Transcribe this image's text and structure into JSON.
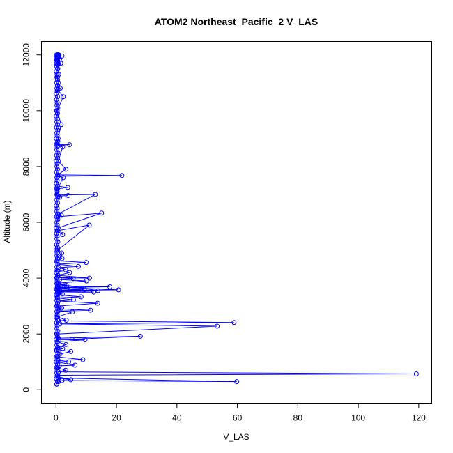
{
  "chart_data": {
    "type": "scatter",
    "title": "ATOM2 Northeast_Pacific_2 V_LAS",
    "xlabel": "V_LAS",
    "ylabel": "Altitude (m)",
    "xlim": [
      -4.8,
      124.3
    ],
    "ylim": [
      -480,
      12480
    ],
    "xticks": [
      0,
      20,
      40,
      60,
      80,
      100,
      120
    ],
    "yticks": [
      0,
      2000,
      4000,
      6000,
      8000,
      10000,
      12000
    ],
    "grid": false,
    "legend": "none",
    "mode": "lines+markers",
    "color": "#0000ff",
    "series": [
      {
        "x": [
          0.3,
          0.8,
          2.0,
          59.8,
          0.6,
          4.9,
          1.0,
          0.4,
          119.2,
          0.8,
          3.2,
          0.5,
          1.1,
          6.3,
          0.6,
          4.2,
          0.7,
          8.9,
          0.5,
          1.3,
          4.9,
          0.3,
          2.2,
          0.6,
          3.3,
          0.4,
          9.6,
          1.0,
          5.3,
          27.9,
          0.7,
          0.4,
          53.3,
          1.3,
          58.9,
          0.8,
          3.4,
          0.5,
          5.4,
          0.7,
          11.4,
          0.6,
          1.9,
          0.4,
          13.8,
          0.8,
          5.8,
          0.5,
          8.3,
          0.6,
          2.1,
          0.4,
          12.5,
          0.6,
          1.3,
          0.5,
          9.4,
          0.7,
          4.7,
          0.4,
          17.8,
          0.5,
          2.8,
          0.8,
          13.9,
          1.0,
          20.7,
          0.5,
          3.4,
          0.6,
          10.1,
          1.2,
          5.7,
          0.4,
          11.1,
          0.7,
          4.5,
          0.5,
          3.2,
          0.9,
          7.4,
          0.6,
          10.0,
          0.4,
          2.0,
          1.2,
          1.9,
          0.5,
          11.0,
          0.4,
          2.2,
          0.7,
          15.1,
          0.6,
          1.8,
          0.8,
          13.0,
          0.5,
          4.0,
          0.7,
          1.2,
          0.4,
          3.9,
          0.5,
          2.4,
          0.6,
          21.8,
          0.5,
          3.3,
          0.8,
          2.2,
          0.6,
          4.5,
          0.5,
          1.0,
          0.7,
          1.7,
          0.4,
          2.4,
          0.6,
          1.4,
          0.5,
          0.8,
          0.5,
          0.9,
          0.6,
          1.6,
          0.5,
          1.2,
          0.6,
          0.8,
          0.5,
          0.7,
          0.6,
          2.0,
          0.5,
          0.8,
          0.6,
          0.7,
          0.5,
          0.9,
          0.6,
          0.7,
          0.5,
          0.8,
          0.5,
          0.7
        ],
        "y": [
          200,
          290,
          330,
          290,
          420,
          360,
          460,
          520,
          570,
          640,
          700,
          790,
          860,
          880,
          990,
          1000,
          1060,
          1080,
          1180,
          1280,
          1370,
          1440,
          1470,
          1520,
          1620,
          1720,
          1790,
          1800,
          1810,
          1920,
          1850,
          2000,
          2280,
          2360,
          2410,
          2470,
          2490,
          2610,
          2790,
          2820,
          2850,
          2900,
          2930,
          3000,
          3100,
          3180,
          3220,
          3290,
          3330,
          3400,
          3430,
          3470,
          3500,
          3520,
          3550,
          3570,
          3600,
          3630,
          3650,
          3670,
          3690,
          3720,
          3730,
          3800,
          3550,
          3560,
          3580,
          3680,
          3740,
          3820,
          3900,
          3950,
          3980,
          4020,
          4000,
          4100,
          4200,
          4240,
          4300,
          4380,
          4420,
          4500,
          4560,
          4620,
          4700,
          4800,
          4900,
          5000,
          5900,
          5700,
          5560,
          5800,
          6330,
          6200,
          6250,
          6300,
          7000,
          6980,
          6960,
          6940,
          6900,
          7300,
          7250,
          7200,
          7600,
          7650,
          7680,
          7700,
          7900,
          8200,
          8700,
          8750,
          8780,
          8800,
          8850,
          9000,
          9500,
          10000,
          10500,
          10750,
          10800,
          10900,
          11000,
          11200,
          11300,
          11500,
          11700,
          11800,
          11850,
          11880,
          11900,
          11920,
          11940,
          11950,
          11960,
          11970,
          11980,
          11990,
          12000,
          12000,
          12000,
          12000,
          12000,
          12000,
          12000,
          12000,
          12000
        ]
      },
      {
        "x": [
          0.2,
          0.5,
          0.1,
          0.6,
          0.3,
          0.4,
          0.2,
          0.5,
          0.1,
          0.4,
          0.3,
          0.6,
          0.2,
          0.5,
          0.3,
          0.4,
          0.1,
          0.5,
          0.2,
          0.6,
          0.3,
          0.4,
          0.2,
          0.5,
          0.1,
          0.4,
          0.3,
          0.6,
          0.2,
          0.5,
          0.3,
          0.4,
          0.1,
          0.5,
          0.2,
          0.6,
          0.3,
          0.4,
          0.2,
          0.5,
          0.1,
          0.4,
          0.3,
          0.6,
          0.2,
          0.5,
          0.3,
          0.4,
          0.1,
          0.5,
          0.2,
          0.6,
          0.3,
          0.4,
          0.2,
          0.5,
          0.1,
          0.4,
          0.3,
          0.6,
          0.2,
          0.5,
          0.3,
          0.4,
          0.1,
          0.5,
          0.2,
          0.6,
          0.3,
          0.4,
          0.2,
          0.5,
          0.1,
          0.4,
          0.3,
          0.6,
          0.2,
          0.5,
          0.3,
          0.4,
          0.1,
          0.5,
          0.2,
          0.6,
          0.3,
          0.4,
          0.2,
          0.5,
          0.1,
          0.4,
          0.3,
          0.6,
          0.2,
          0.5,
          0.3,
          0.4,
          0.1,
          0.5,
          0.2,
          0.6,
          0.3,
          0.4,
          0.2,
          0.5,
          0.1,
          0.4,
          0.3,
          0.6,
          0.2,
          0.5,
          0.3,
          0.4,
          0.1,
          0.5,
          0.2,
          0.6,
          0.3,
          0.4,
          0.2,
          0.5,
          0.1,
          0.4,
          0.3,
          0.6,
          0.2,
          0.5
        ],
        "y": [
          200,
          300,
          400,
          500,
          600,
          700,
          800,
          900,
          1000,
          1100,
          1200,
          1300,
          1400,
          1500,
          1600,
          1700,
          1800,
          1900,
          2000,
          2100,
          2200,
          2300,
          2400,
          2500,
          2600,
          2700,
          2800,
          2900,
          3000,
          3100,
          3200,
          3300,
          3400,
          3500,
          3600,
          3700,
          3800,
          3900,
          4000,
          4100,
          4200,
          4300,
          4400,
          4500,
          4600,
          4700,
          4800,
          4900,
          5000,
          5100,
          5200,
          5300,
          5400,
          5500,
          5600,
          5700,
          5800,
          5900,
          6000,
          6100,
          6200,
          6300,
          6400,
          6500,
          6600,
          6700,
          6800,
          6900,
          7000,
          7100,
          7200,
          7300,
          7400,
          7500,
          7600,
          7700,
          7800,
          7900,
          8000,
          8100,
          8200,
          8300,
          8400,
          8500,
          8600,
          8700,
          8800,
          8900,
          9000,
          9100,
          9200,
          9300,
          9400,
          9500,
          9600,
          9700,
          9800,
          9900,
          10000,
          10100,
          10200,
          10300,
          10400,
          10500,
          10600,
          10700,
          10800,
          10900,
          11000,
          11100,
          11200,
          11300,
          11400,
          11500,
          11600,
          11700,
          11800,
          11900,
          12000,
          11950,
          11900,
          11850,
          11800,
          11750,
          11700,
          11650
        ]
      }
    ]
  }
}
